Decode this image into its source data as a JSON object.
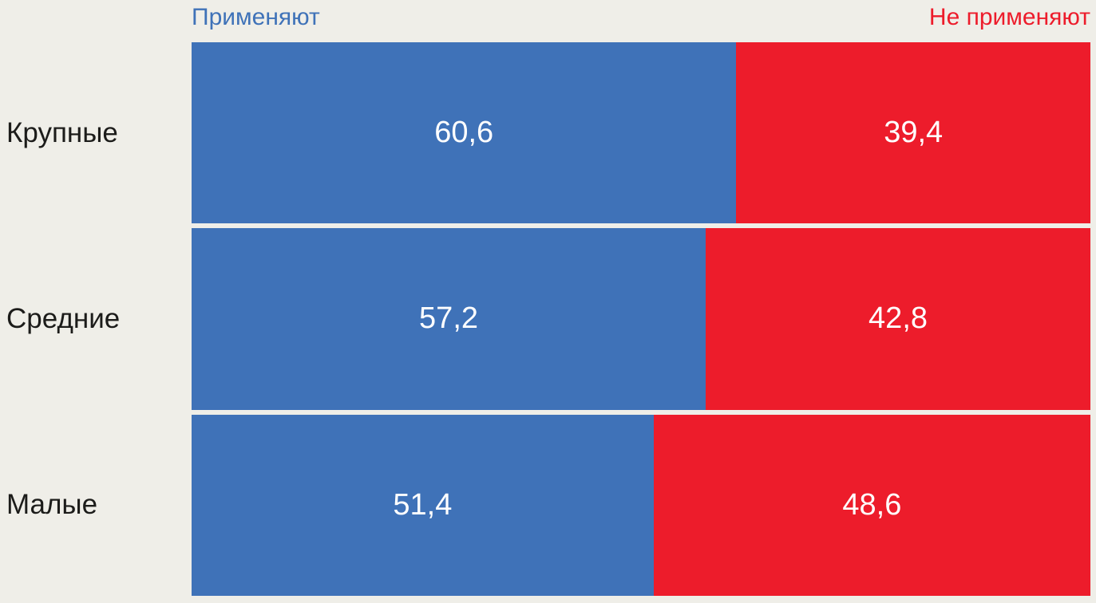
{
  "colors": {
    "background": "#EFEEE8",
    "apply_blue": "#3F72B8",
    "not_apply_red": "#ED1C2B",
    "category_text": "#1C1C1A",
    "value_text": "#FFFFFF"
  },
  "chart_data": {
    "type": "bar",
    "orientation": "horizontal-stacked",
    "title": "",
    "xlabel": "",
    "ylabel": "",
    "xlim": [
      0,
      100
    ],
    "grid": false,
    "legend_position": "top (first series left-aligned, second series right-aligned)",
    "categories": [
      "Крупные",
      "Средние",
      "Малые"
    ],
    "series": [
      {
        "name": "Применяют",
        "color": "#3F72B8",
        "values": [
          60.6,
          57.2,
          51.4
        ],
        "labels": [
          "60,6",
          "57,2",
          "51,4"
        ]
      },
      {
        "name": "Не применяют",
        "color": "#ED1C2B",
        "values": [
          39.4,
          42.8,
          48.6
        ],
        "labels": [
          "39,4",
          "42,8",
          "48,6"
        ]
      }
    ],
    "value_format": "one decimal place, comma as decimal separator"
  }
}
